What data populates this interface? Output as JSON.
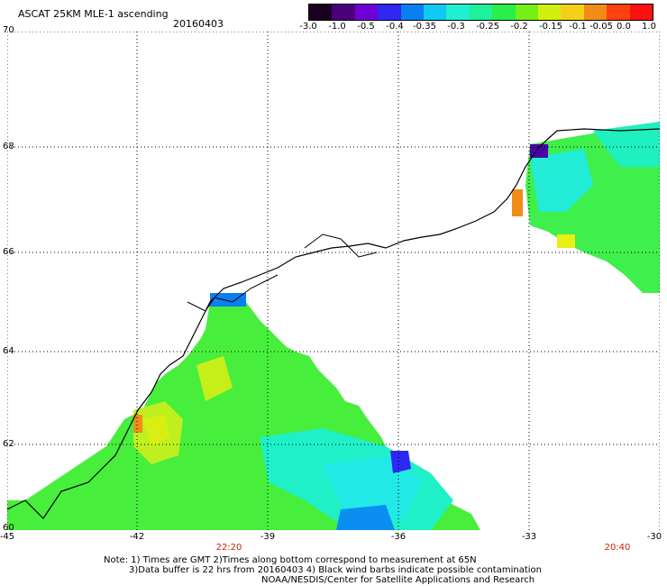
{
  "header": {
    "product": "ASCAT 25KM MLE-1 ascending",
    "date": "20160403"
  },
  "colorbar": {
    "labels": [
      "-3.0",
      "-1.0",
      "-0.5",
      "-0.4",
      "-0.35",
      "-0.3",
      "-0.25",
      "-0.2",
      "-0.15",
      "-0.1",
      "-0.05",
      "0.0",
      "1.0"
    ],
    "colors": [
      "#1a0020",
      "#4b007a",
      "#6f00d8",
      "#2f27f2",
      "#0a7ff0",
      "#11c9f2",
      "#1ff0d0",
      "#1ff09a",
      "#2aef4a",
      "#75ef18",
      "#d2f010",
      "#f5d018",
      "#f08d18",
      "#ff4010",
      "#ff1010"
    ]
  },
  "map": {
    "lat_labels": [
      "70",
      "68",
      "66",
      "64",
      "62",
      "60"
    ],
    "lon_labels": [
      "-45",
      "-42",
      "-39",
      "-36",
      "-33",
      "-30"
    ],
    "time_labels": [
      "22:20",
      "20:40"
    ]
  },
  "notes": {
    "line1": "Note: 1) Times are GMT 2)Times along bottom correspond to measurement at 65N",
    "line2": "3)Data buffer is 22 hrs from 20160403 4) Black wind barbs indicate possible contamination",
    "line3": "NOAA/NESDIS/Center for Satellite Applications and Research"
  }
}
